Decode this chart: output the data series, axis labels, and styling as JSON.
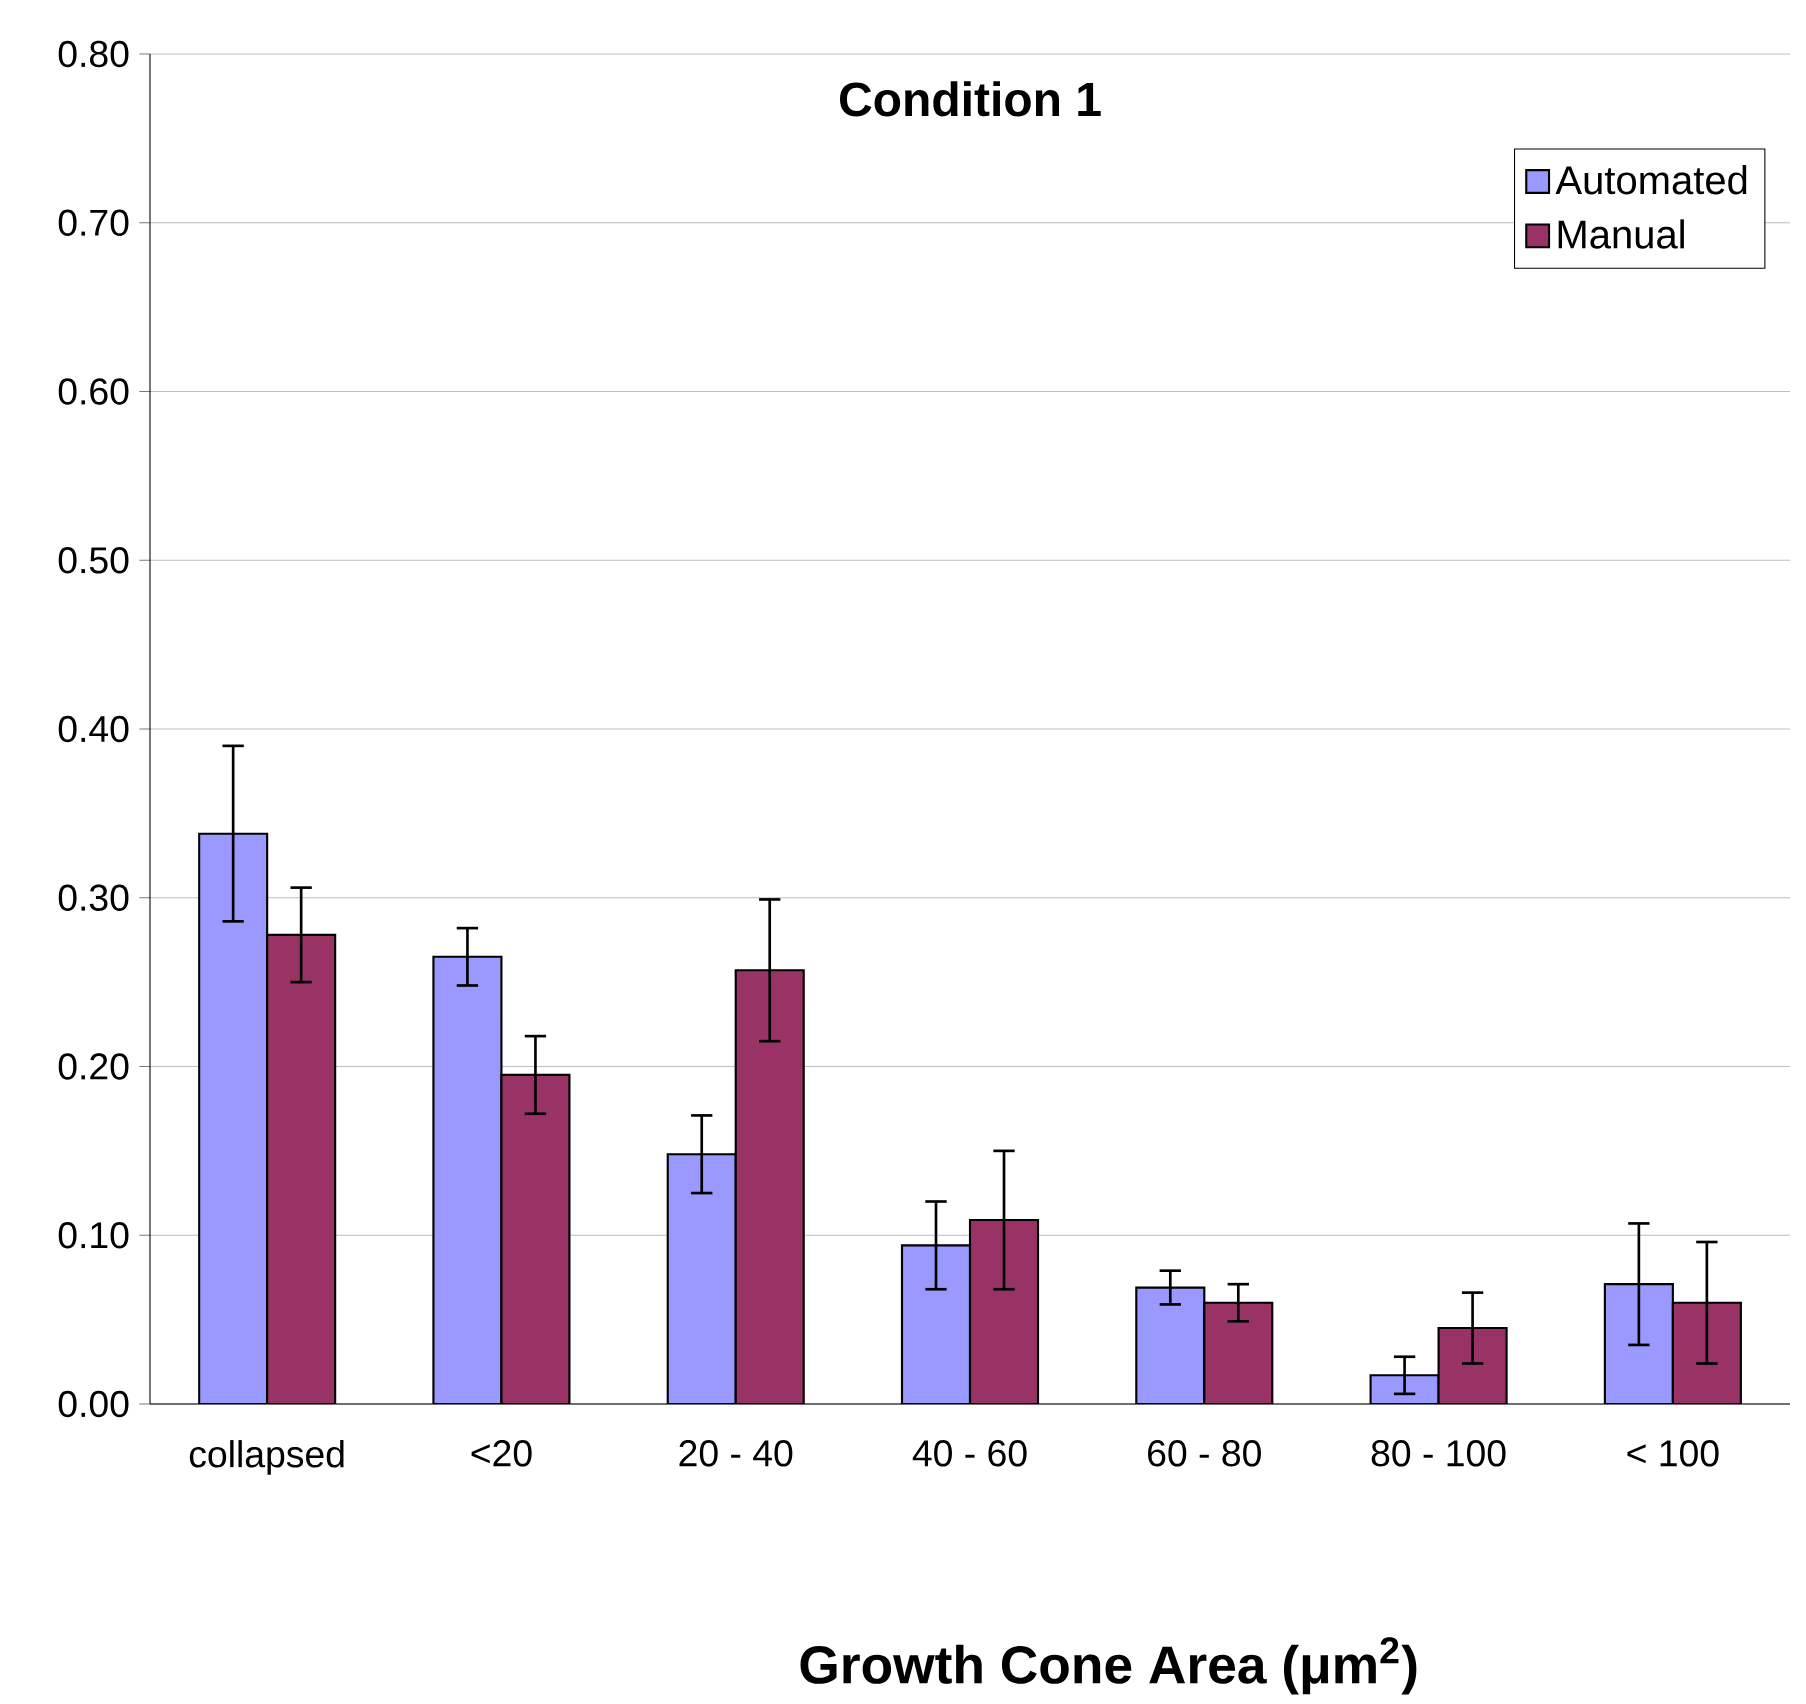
{
  "chart_data": {
    "type": "bar",
    "title": "Condition 1",
    "xlabel": "Growth Cone Area (μm$^{2}$)",
    "categories": [
      "collapsed",
      "<20",
      "20 - 40",
      "40 - 60",
      "60 - 80",
      "80 - 100",
      "< 100"
    ],
    "series": [
      {
        "name": "Automated",
        "color": "#9999ff",
        "values": [
          0.338,
          0.265,
          0.148,
          0.094,
          0.069,
          0.017,
          0.071
        ],
        "errors": [
          0.052,
          0.017,
          0.023,
          0.026,
          0.01,
          0.011,
          0.036
        ]
      },
      {
        "name": "Manual",
        "color": "#993366",
        "values": [
          0.278,
          0.195,
          0.257,
          0.109,
          0.06,
          0.045,
          0.06
        ],
        "errors": [
          0.028,
          0.023,
          0.042,
          0.041,
          0.011,
          0.021,
          0.036
        ]
      }
    ],
    "ylim": [
      0,
      0.8
    ],
    "yticks": [
      {
        "value": 0,
        "label": "0.00"
      },
      {
        "value": 0.1,
        "label": "0.10"
      },
      {
        "value": 0.2,
        "label": "0.20"
      },
      {
        "value": 0.3,
        "label": "0.30"
      },
      {
        "value": 0.4,
        "label": "0.40"
      },
      {
        "value": 0.5,
        "label": "0.50"
      },
      {
        "value": 0.6,
        "label": "0.60"
      },
      {
        "value": 0.7,
        "label": "0.70"
      },
      {
        "value": 0.8,
        "label": "0.80"
      }
    ],
    "grid": "y",
    "legend": "top right"
  }
}
